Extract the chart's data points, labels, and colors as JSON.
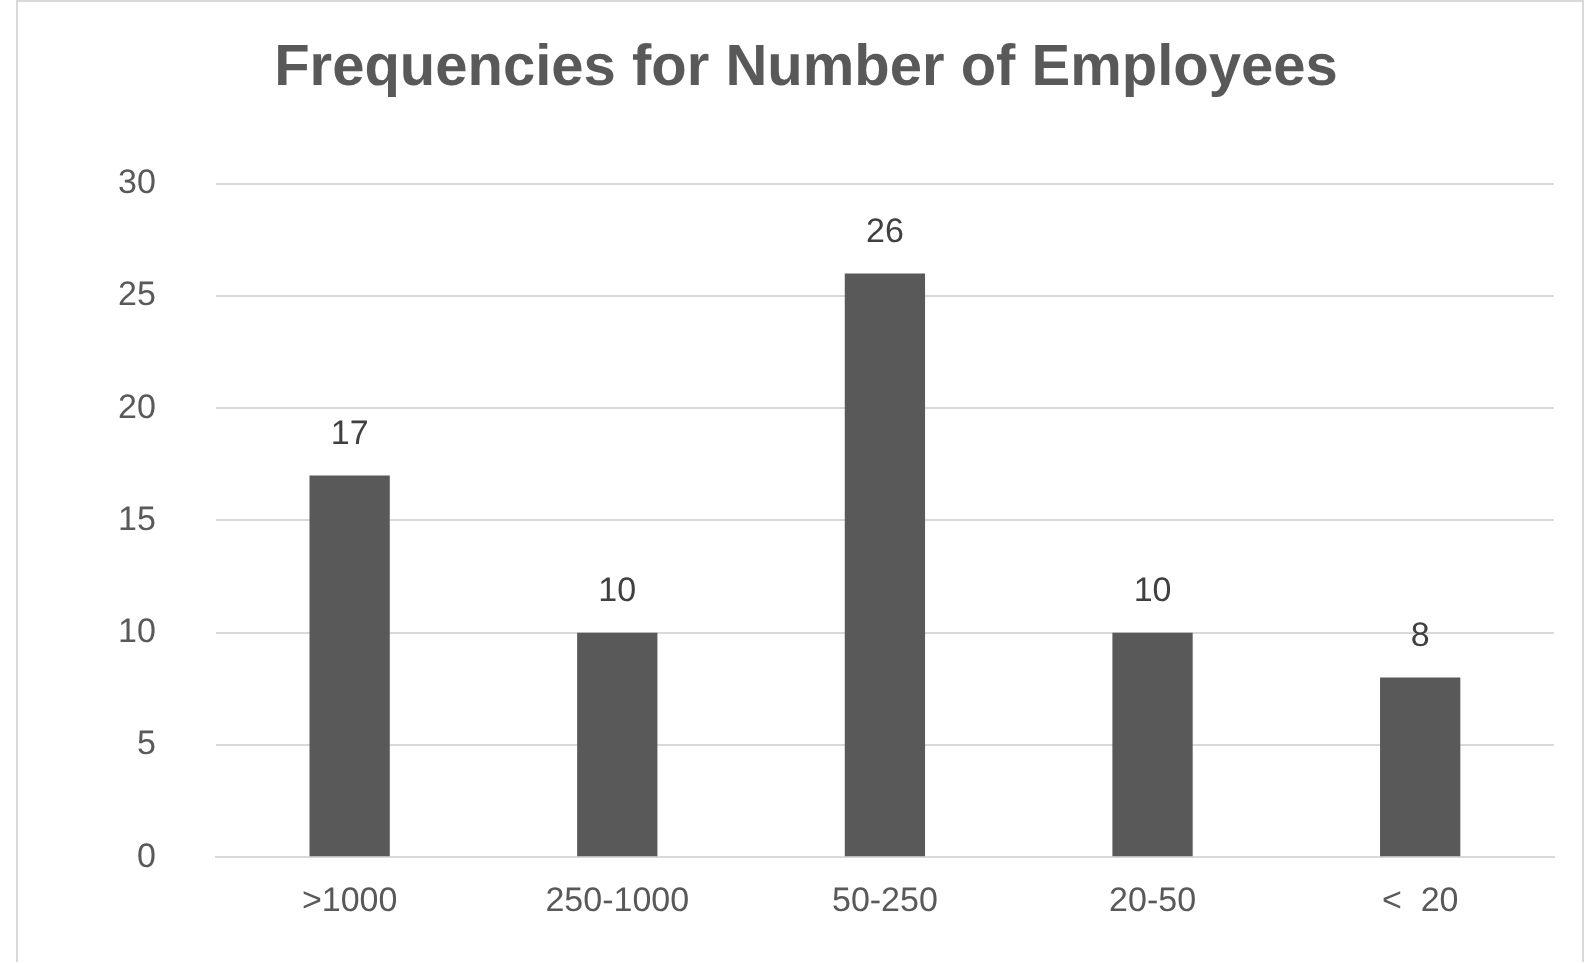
{
  "chart_data": {
    "type": "bar",
    "title": "Frequencies for Number of Employees",
    "categories": [
      ">1000",
      "250-1000",
      "50-250",
      "20-50",
      "<  20"
    ],
    "values": [
      17,
      10,
      26,
      10,
      8
    ],
    "color": "#595959",
    "ylim": [
      0,
      30
    ],
    "yticks": [
      0,
      5,
      10,
      15,
      20,
      25,
      30
    ],
    "grid": "y",
    "legend": false,
    "data_labels": true
  }
}
